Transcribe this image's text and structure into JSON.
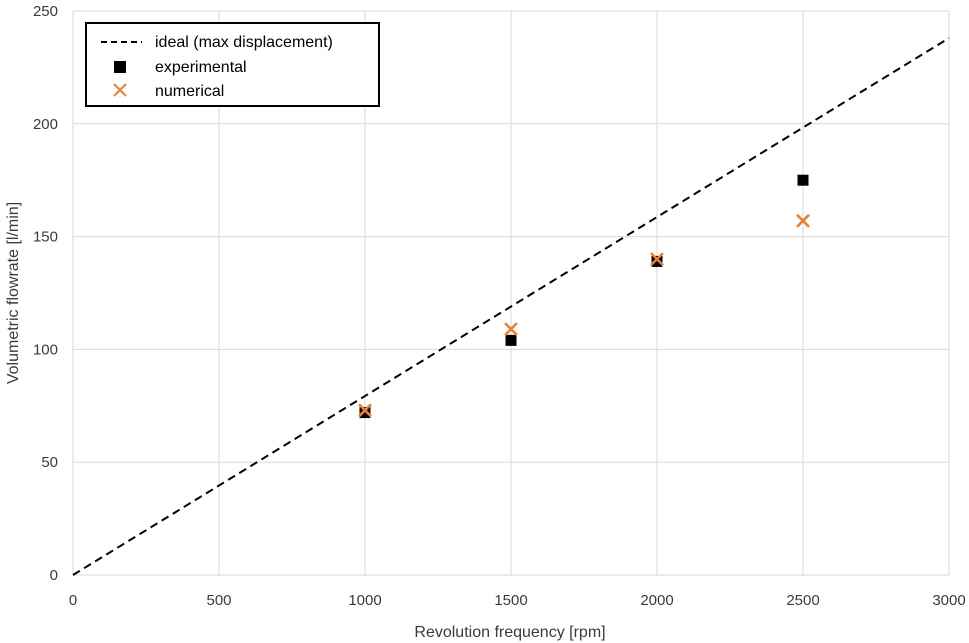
{
  "chart_data": {
    "type": "scatter",
    "title": "",
    "xlabel": "Revolution frequency [rpm]",
    "ylabel": "Volumetric flowrate [l/min]",
    "xlim": [
      0,
      3000
    ],
    "ylim": [
      0,
      250
    ],
    "x_ticks": [
      0,
      500,
      1000,
      1500,
      2000,
      2500,
      3000
    ],
    "y_ticks": [
      0,
      50,
      100,
      150,
      200,
      250
    ],
    "grid": true,
    "legend_position": "top-left",
    "series": [
      {
        "name": "ideal (max displacement)",
        "kind": "line",
        "style": "dashed",
        "color": "#000000",
        "x": [
          0,
          3000
        ],
        "y": [
          0,
          238
        ]
      },
      {
        "name": "experimental",
        "kind": "marker",
        "marker": "square",
        "color": "#000000",
        "x": [
          1000,
          1500,
          2000,
          2500
        ],
        "y": [
          72,
          104,
          139,
          175
        ]
      },
      {
        "name": "numerical",
        "kind": "marker",
        "marker": "x",
        "color": "#ED7D31",
        "x": [
          1000,
          1500,
          2000,
          2500
        ],
        "y": [
          73,
          109,
          140,
          157
        ]
      }
    ]
  }
}
